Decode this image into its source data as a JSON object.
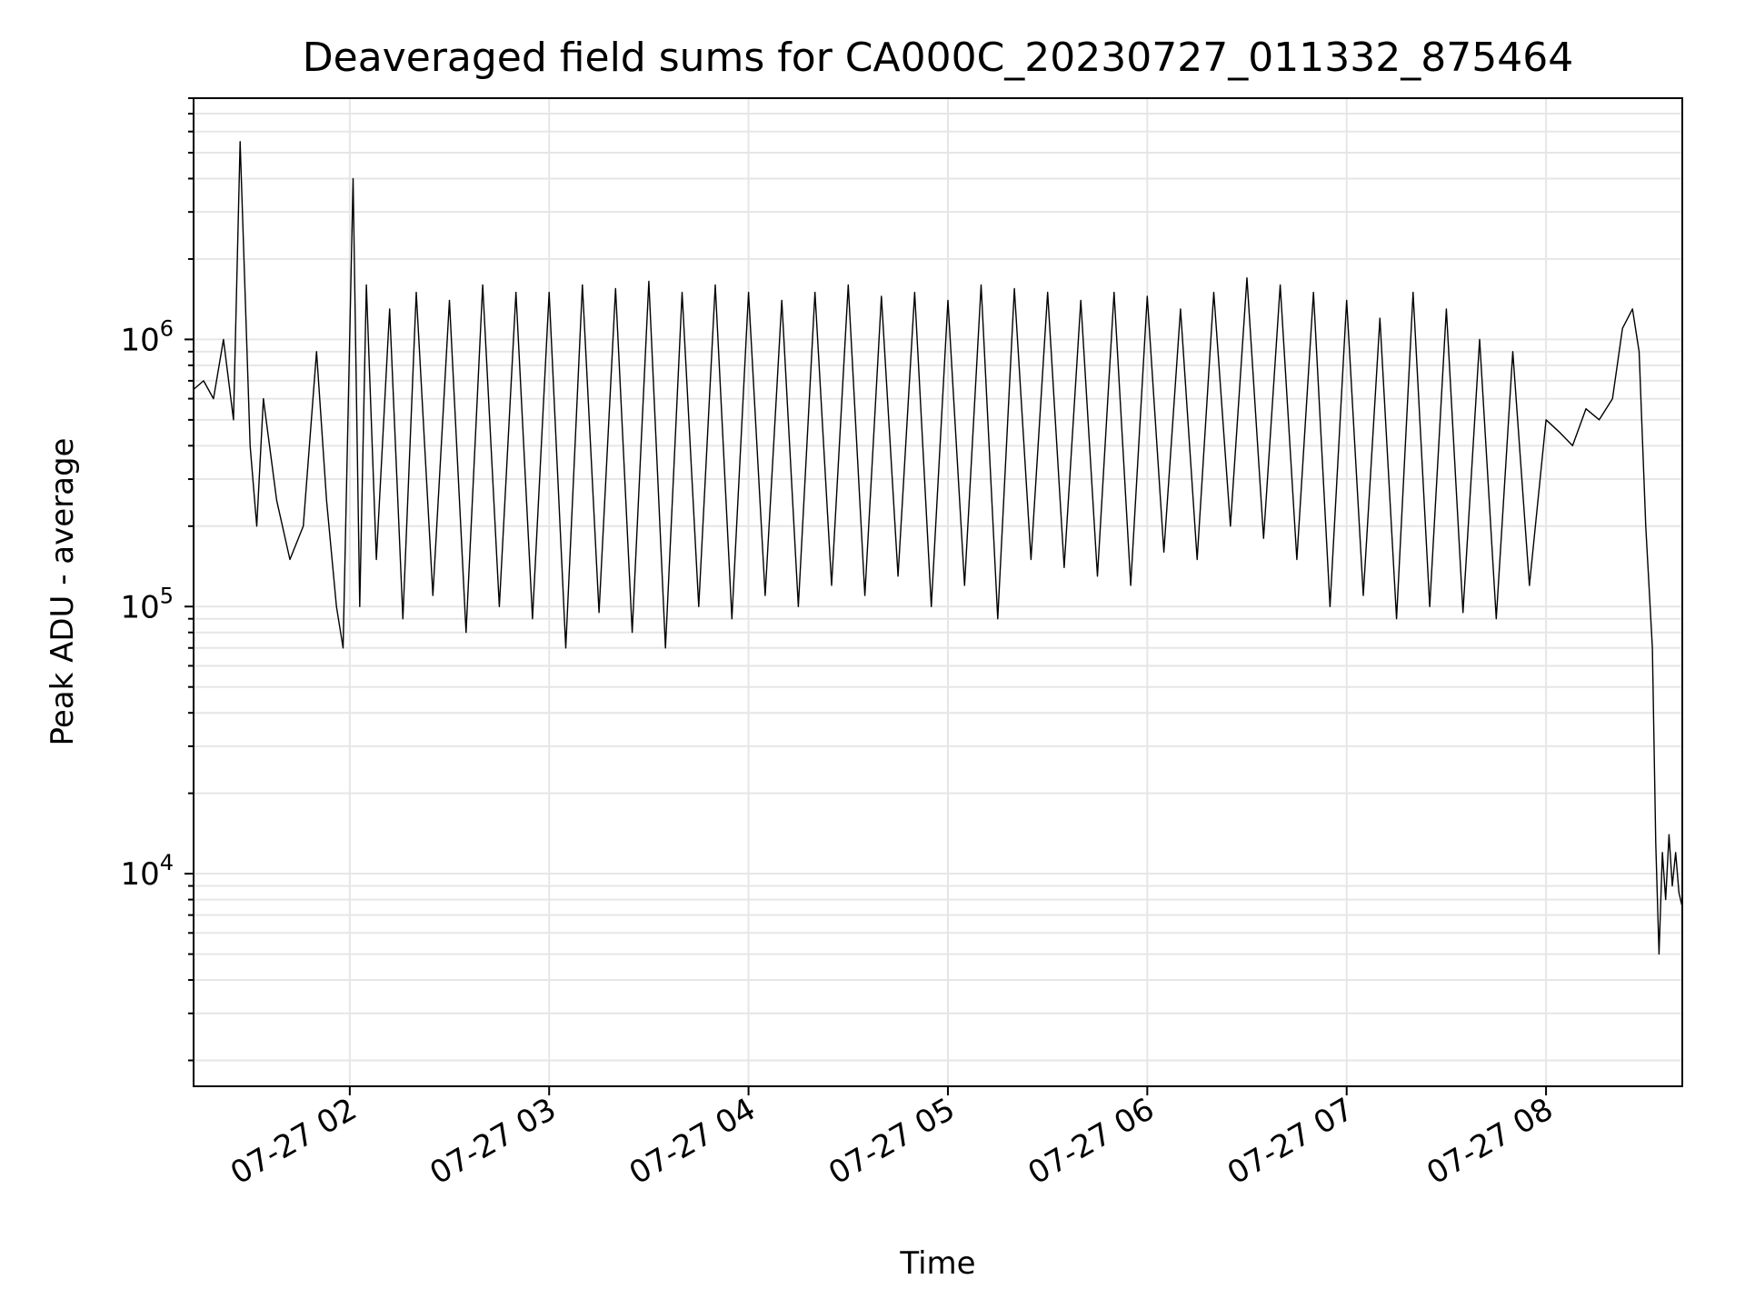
{
  "chart_data": {
    "type": "line",
    "title": "Deaveraged field sums for CA000C_20230727_011332_875464",
    "xlabel": "Time",
    "ylabel": "Peak ADU - average",
    "x_axis": {
      "scale": "time",
      "range": [
        "2023-07-27 01:13",
        "2023-07-27 08:41"
      ],
      "ticks": [
        {
          "value": "2023-07-27 02:00",
          "label": "07-27 02"
        },
        {
          "value": "2023-07-27 03:00",
          "label": "07-27 03"
        },
        {
          "value": "2023-07-27 04:00",
          "label": "07-27 04"
        },
        {
          "value": "2023-07-27 05:00",
          "label": "07-27 05"
        },
        {
          "value": "2023-07-27 06:00",
          "label": "07-27 06"
        },
        {
          "value": "2023-07-27 07:00",
          "label": "07-27 07"
        },
        {
          "value": "2023-07-27 08:00",
          "label": "07-27 08"
        }
      ],
      "tick_label_rotation_deg": 30
    },
    "y_axis": {
      "scale": "log",
      "range": [
        1600,
        8000000
      ],
      "major_ticks": [
        {
          "value": 10000,
          "base": "10",
          "exp": "4"
        },
        {
          "value": 100000,
          "base": "10",
          "exp": "5"
        },
        {
          "value": 1000000,
          "base": "10",
          "exp": "6"
        }
      ]
    },
    "grid": true,
    "grid_minor_y": true,
    "line_color": "#000000",
    "series": [
      {
        "x": [
          "2023-07-27 01:13",
          "2023-07-27 01:16",
          "2023-07-27 01:19",
          "2023-07-27 01:22",
          "2023-07-27 01:25",
          "2023-07-27 01:27",
          "2023-07-27 01:30",
          "2023-07-27 01:32",
          "2023-07-27 01:34",
          "2023-07-27 01:38",
          "2023-07-27 01:42",
          "2023-07-27 01:46",
          "2023-07-27 01:50",
          "2023-07-27 01:53",
          "2023-07-27 01:56",
          "2023-07-27 01:58",
          "2023-07-27 02:01",
          "2023-07-27 02:03",
          "2023-07-27 02:05",
          "2023-07-27 02:08",
          "2023-07-27 02:12",
          "2023-07-27 02:16",
          "2023-07-27 02:20",
          "2023-07-27 02:25",
          "2023-07-27 02:30",
          "2023-07-27 02:35",
          "2023-07-27 02:40",
          "2023-07-27 02:45",
          "2023-07-27 02:50",
          "2023-07-27 02:55",
          "2023-07-27 03:00",
          "2023-07-27 03:05",
          "2023-07-27 03:10",
          "2023-07-27 03:15",
          "2023-07-27 03:20",
          "2023-07-27 03:25",
          "2023-07-27 03:30",
          "2023-07-27 03:35",
          "2023-07-27 03:40",
          "2023-07-27 03:45",
          "2023-07-27 03:50",
          "2023-07-27 03:55",
          "2023-07-27 04:00",
          "2023-07-27 04:05",
          "2023-07-27 04:10",
          "2023-07-27 04:15",
          "2023-07-27 04:20",
          "2023-07-27 04:25",
          "2023-07-27 04:30",
          "2023-07-27 04:35",
          "2023-07-27 04:40",
          "2023-07-27 04:45",
          "2023-07-27 04:50",
          "2023-07-27 04:55",
          "2023-07-27 05:00",
          "2023-07-27 05:05",
          "2023-07-27 05:10",
          "2023-07-27 05:15",
          "2023-07-27 05:20",
          "2023-07-27 05:25",
          "2023-07-27 05:30",
          "2023-07-27 05:35",
          "2023-07-27 05:40",
          "2023-07-27 05:45",
          "2023-07-27 05:50",
          "2023-07-27 05:55",
          "2023-07-27 06:00",
          "2023-07-27 06:05",
          "2023-07-27 06:10",
          "2023-07-27 06:15",
          "2023-07-27 06:20",
          "2023-07-27 06:25",
          "2023-07-27 06:30",
          "2023-07-27 06:35",
          "2023-07-27 06:40",
          "2023-07-27 06:45",
          "2023-07-27 06:50",
          "2023-07-27 06:55",
          "2023-07-27 07:00",
          "2023-07-27 07:05",
          "2023-07-27 07:10",
          "2023-07-27 07:15",
          "2023-07-27 07:20",
          "2023-07-27 07:25",
          "2023-07-27 07:30",
          "2023-07-27 07:35",
          "2023-07-27 07:40",
          "2023-07-27 07:45",
          "2023-07-27 07:50",
          "2023-07-27 07:55",
          "2023-07-27 08:00",
          "2023-07-27 08:04",
          "2023-07-27 08:08",
          "2023-07-27 08:12",
          "2023-07-27 08:16",
          "2023-07-27 08:20",
          "2023-07-27 08:23",
          "2023-07-27 08:26",
          "2023-07-27 08:28",
          "2023-07-27 08:30",
          "2023-07-27 08:32",
          "2023-07-27 08:33",
          "2023-07-27 08:34",
          "2023-07-27 08:35",
          "2023-07-27 08:36",
          "2023-07-27 08:37",
          "2023-07-27 08:38",
          "2023-07-27 08:39",
          "2023-07-27 08:40",
          "2023-07-27 08:41"
        ],
        "y": [
          650000,
          700000,
          600000,
          1000000,
          500000,
          5500000,
          400000,
          200000,
          600000,
          250000,
          150000,
          200000,
          900000,
          250000,
          100000,
          70000,
          4000000,
          100000,
          1600000,
          150000,
          1300000,
          90000,
          1500000,
          110000,
          1400000,
          80000,
          1600000,
          100000,
          1500000,
          90000,
          1500000,
          70000,
          1600000,
          95000,
          1550000,
          80000,
          1650000,
          70000,
          1500000,
          100000,
          1600000,
          90000,
          1500000,
          110000,
          1400000,
          100000,
          1500000,
          120000,
          1600000,
          110000,
          1450000,
          130000,
          1500000,
          100000,
          1400000,
          120000,
          1600000,
          90000,
          1550000,
          150000,
          1500000,
          140000,
          1400000,
          130000,
          1500000,
          120000,
          1450000,
          160000,
          1300000,
          150000,
          1500000,
          200000,
          1700000,
          180000,
          1600000,
          150000,
          1500000,
          100000,
          1400000,
          110000,
          1200000,
          90000,
          1500000,
          100000,
          1300000,
          95000,
          1000000,
          90000,
          900000,
          120000,
          500000,
          450000,
          400000,
          550000,
          500000,
          600000,
          1100000,
          1300000,
          900000,
          200000,
          70000,
          13000,
          5000,
          12000,
          8000,
          14000,
          9000,
          12000,
          8500,
          7500
        ]
      }
    ]
  }
}
